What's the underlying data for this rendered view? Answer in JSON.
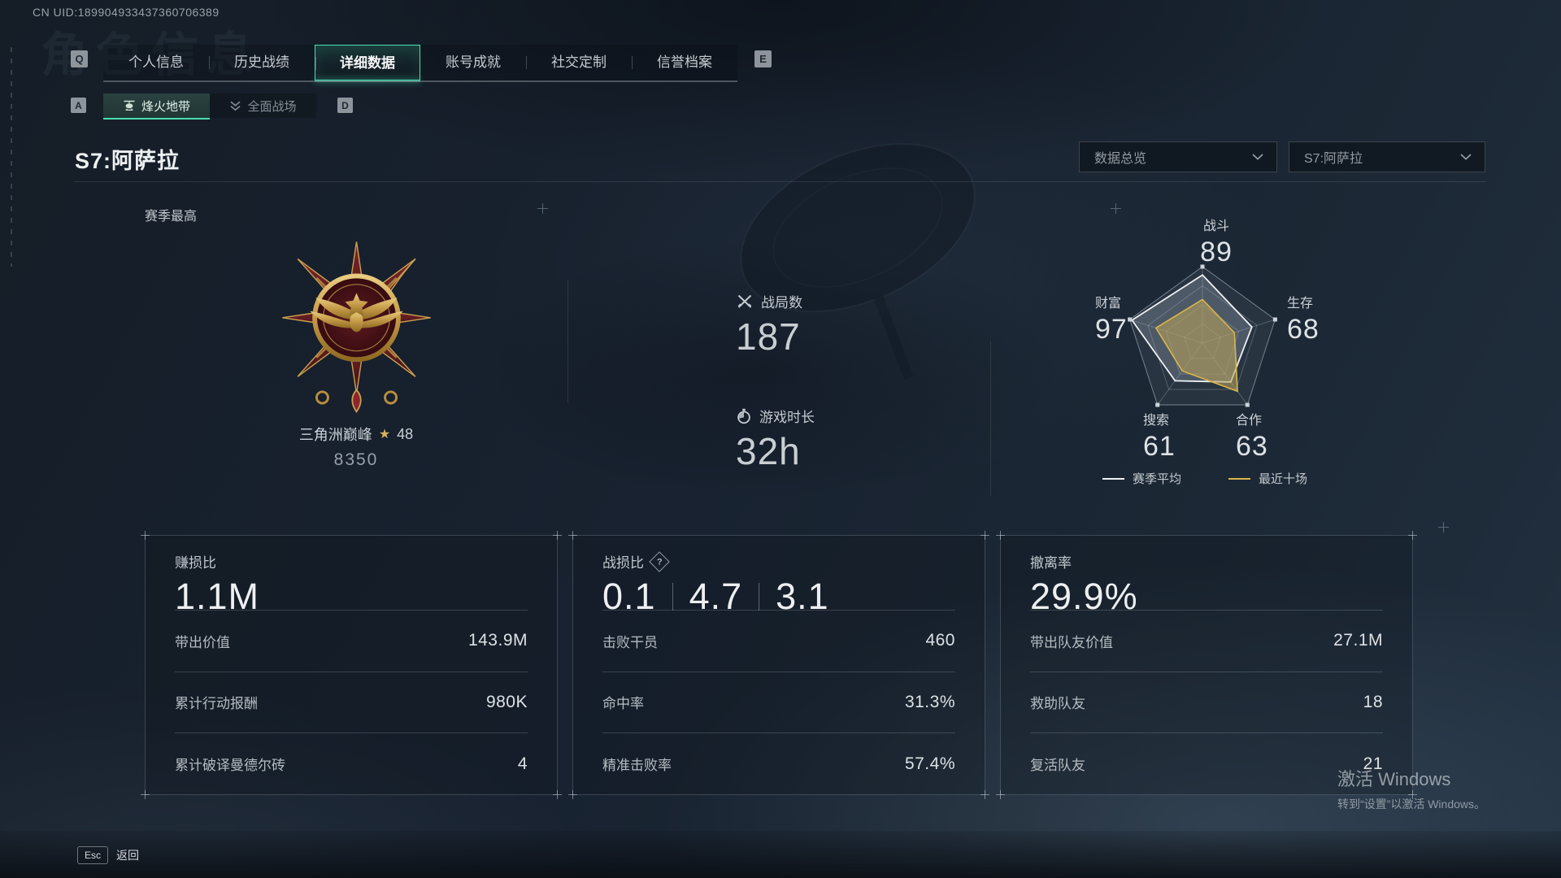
{
  "meta": {
    "uid": "CN UID:189904933437360706389",
    "ghost_title": "角色信息"
  },
  "tabs": {
    "key_hint_left": "Q",
    "key_hint_right": "E",
    "items": [
      {
        "label": "个人信息",
        "name": "personal-info",
        "active": false
      },
      {
        "label": "历史战绩",
        "name": "match-history",
        "active": false
      },
      {
        "label": "详细数据",
        "name": "detailed-stats",
        "active": true
      },
      {
        "label": "账号成就",
        "name": "account-achievements",
        "active": false
      },
      {
        "label": "社交定制",
        "name": "social-custom",
        "active": false
      },
      {
        "label": "信誉档案",
        "name": "reputation-file",
        "active": false
      }
    ]
  },
  "subtabs": {
    "key_hint_left": "A",
    "key_hint_right": "D",
    "items": [
      {
        "label": "烽火地带",
        "name": "fire-zone",
        "active": true
      },
      {
        "label": "全面战场",
        "name": "full-battlefield",
        "active": false
      }
    ]
  },
  "season": {
    "title": "S7:阿萨拉",
    "season_best_label": "赛季最高",
    "filters": [
      {
        "value": "数据总览",
        "name": "data-overview"
      },
      {
        "value": "S7:阿萨拉",
        "name": "season-select"
      }
    ]
  },
  "medal": {
    "name": "三角洲巅峰",
    "star": "★",
    "level": "48",
    "score": "8350"
  },
  "overview": [
    {
      "icon": "crossed-swords-icon",
      "label": "战局数",
      "value": "187"
    },
    {
      "icon": "stopwatch-icon",
      "label": "游戏时长",
      "value": "32h"
    }
  ],
  "chart_data": {
    "type": "radar",
    "axes": [
      "战斗",
      "生存",
      "合作",
      "搜索",
      "财富"
    ],
    "max": 100,
    "grid_levels": 4,
    "legend_position": "bottom",
    "series": [
      {
        "name": "赛季平均",
        "color": "#eef1f4",
        "fill": "rgba(176,188,200,0.28)",
        "values": [
          89,
          68,
          63,
          61,
          97
        ]
      },
      {
        "name": "最近十场",
        "color": "#d9b54b",
        "fill": "rgba(186,162,92,0.58)",
        "values": [
          57,
          44,
          78,
          45,
          64
        ]
      }
    ]
  },
  "cards": [
    {
      "name": "profit-loss-ratio",
      "title": "赚损比",
      "big": "1.1M",
      "rows": [
        {
          "label": "带出价值",
          "value": "143.9M"
        },
        {
          "label": "累计行动报酬",
          "value": "980K"
        },
        {
          "label": "累计破译曼德尔砖",
          "value": "4"
        }
      ]
    },
    {
      "name": "kd-ratio",
      "title": "战损比",
      "has_help": true,
      "big_parts": [
        "0.1",
        "4.7",
        "3.1"
      ],
      "rows": [
        {
          "label": "击败干员",
          "value": "460"
        },
        {
          "label": "命中率",
          "value": "31.3%"
        },
        {
          "label": "精准击败率",
          "value": "57.4%"
        }
      ]
    },
    {
      "name": "extraction-rate",
      "title": "撤离率",
      "big": "29.9%",
      "rows": [
        {
          "label": "带出队友价值",
          "value": "27.1M"
        },
        {
          "label": "救助队友",
          "value": "18"
        },
        {
          "label": "复活队友",
          "value": "21"
        }
      ]
    }
  ],
  "footer": {
    "esc_key": "Esc",
    "back_label": "返回"
  },
  "watermark": {
    "line1": "激活 Windows",
    "line2": "转到“设置”以激活 Windows。"
  }
}
